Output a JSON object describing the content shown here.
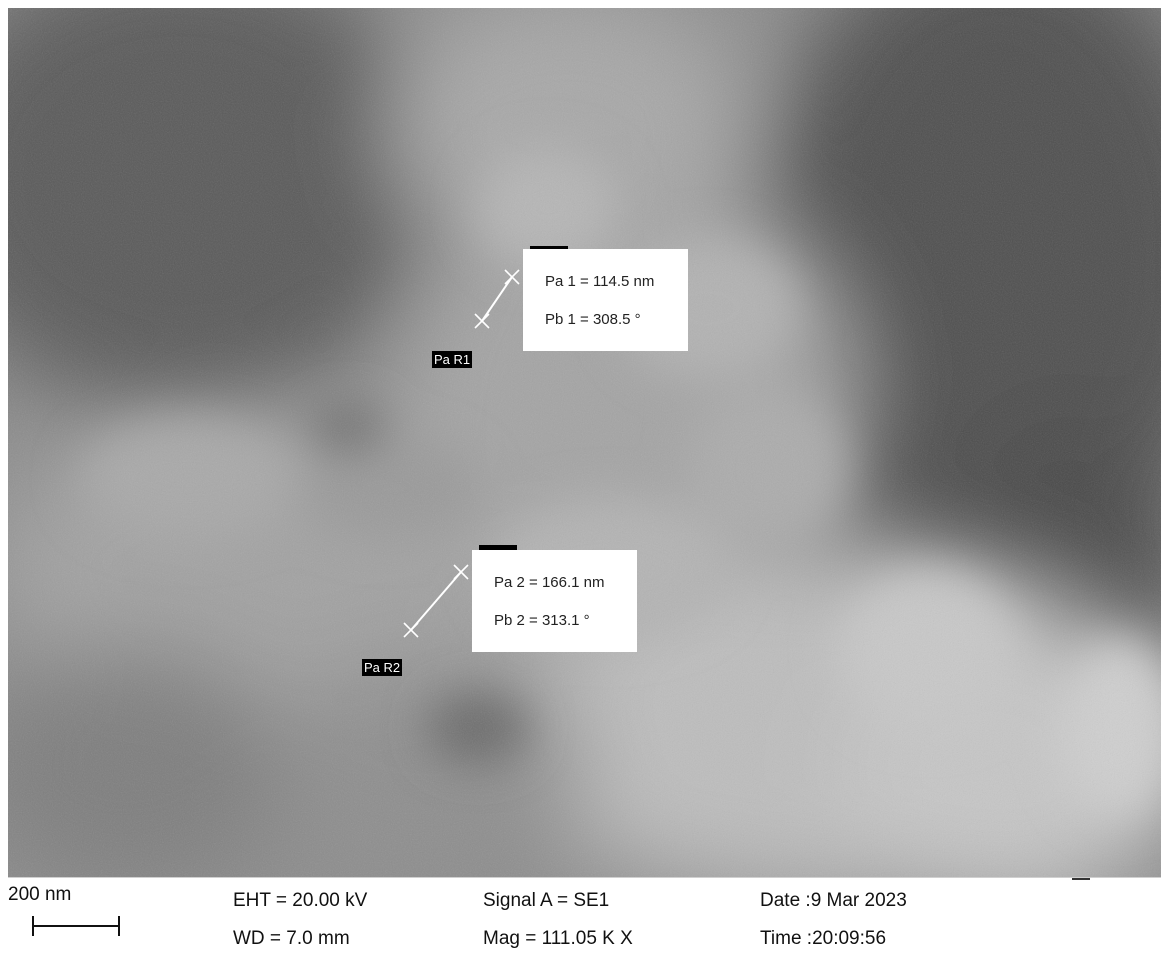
{
  "measurements": [
    {
      "region_label": "Pa R1",
      "pa_text": "Pa 1 = 114.5 nm",
      "pb_text": "Pb 1 = 308.5 °"
    },
    {
      "region_label": "Pa R2",
      "pa_text": "Pa 2 = 166.1 nm",
      "pb_text": "Pb 2 = 313.1 °"
    }
  ],
  "info_bar": {
    "scale_label": "200 nm",
    "eht": "EHT = 20.00 kV",
    "wd": "WD =  7.0 mm",
    "signal": "Signal A = SE1",
    "mag": "Mag =  111.05 K X",
    "date": "Date :9 Mar 2023",
    "time": "Time :20:09:56"
  },
  "colors": {
    "annotation": "#ffffff",
    "label_bg": "#000000"
  }
}
